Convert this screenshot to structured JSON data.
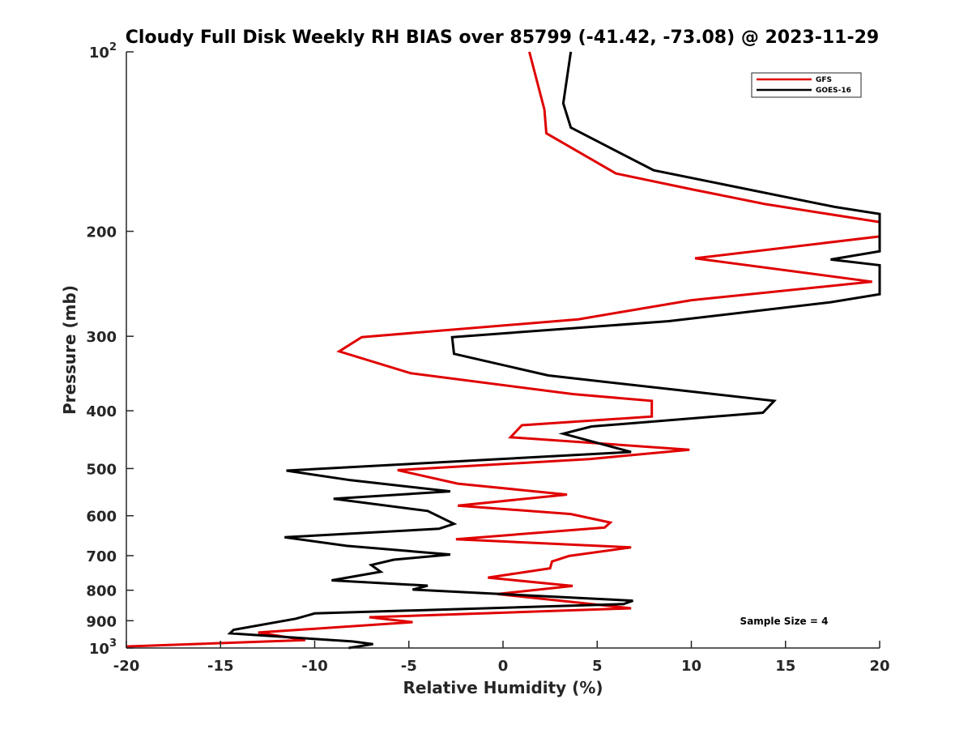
{
  "chart_data": {
    "type": "line",
    "title": "Cloudy Full Disk Weekly RH BIAS over 85799 (-41.42, -73.08) @ 2023-11-29",
    "xlabel": "Relative Humidity (%)",
    "ylabel": "Pressure (mb)",
    "xlim": [
      -20,
      20
    ],
    "ylim": [
      100,
      1000
    ],
    "y_scale": "log",
    "y_reversed": true,
    "x_ticks": [
      "-20",
      "-15",
      "-10",
      "-5",
      "0",
      "5",
      "10",
      "15",
      "20"
    ],
    "y_tick_values": [
      100,
      200,
      300,
      400,
      500,
      600,
      700,
      800,
      900,
      1000
    ],
    "y_tick_labels": [
      {
        "base": "10",
        "exp": "2"
      },
      {
        "base": "200",
        "exp": ""
      },
      {
        "base": "300",
        "exp": ""
      },
      {
        "base": "400",
        "exp": ""
      },
      {
        "base": "500",
        "exp": ""
      },
      {
        "base": "600",
        "exp": ""
      },
      {
        "base": "700",
        "exp": ""
      },
      {
        "base": "800",
        "exp": ""
      },
      {
        "base": "900",
        "exp": ""
      },
      {
        "base": "10",
        "exp": "3"
      }
    ],
    "legend_position": "top-right",
    "annotation": "Sample Size = 4",
    "grid": false,
    "series": [
      {
        "name": "GFS",
        "color": "#e00000",
        "points": [
          [
            1.4,
            100
          ],
          [
            2.2,
            125
          ],
          [
            2.3,
            137
          ],
          [
            6.0,
            160
          ],
          [
            10.0,
            170
          ],
          [
            13.9,
            180
          ],
          [
            20.0,
            193
          ],
          [
            20.0,
            204
          ],
          [
            10.2,
            222
          ],
          [
            19.6,
            243
          ],
          [
            10.0,
            261
          ],
          [
            4.0,
            281
          ],
          [
            -7.5,
            301
          ],
          [
            -8.7,
            318
          ],
          [
            -4.9,
            346
          ],
          [
            3.7,
            375
          ],
          [
            7.9,
            385
          ],
          [
            7.9,
            409
          ],
          [
            1.0,
            423
          ],
          [
            0.4,
            443
          ],
          [
            9.9,
            465
          ],
          [
            4.6,
            482
          ],
          [
            -5.6,
            503
          ],
          [
            -2.4,
            530
          ],
          [
            3.4,
            553
          ],
          [
            -2.4,
            577
          ],
          [
            3.6,
            596
          ],
          [
            5.7,
            616
          ],
          [
            5.4,
            628
          ],
          [
            -2.5,
            657
          ],
          [
            6.8,
            678
          ],
          [
            3.5,
            701
          ],
          [
            2.6,
            716
          ],
          [
            2.5,
            735
          ],
          [
            -0.8,
            762
          ],
          [
            3.7,
            787
          ],
          [
            -0.3,
            812
          ],
          [
            3.5,
            836
          ],
          [
            6.8,
            858
          ],
          [
            -7.1,
            888
          ],
          [
            -4.8,
            905
          ],
          [
            -13.0,
            942
          ],
          [
            -10.5,
            970
          ],
          [
            -20.0,
            994
          ]
        ]
      },
      {
        "name": "GOES-16",
        "color": "#000000",
        "points": [
          [
            3.6,
            100
          ],
          [
            3.2,
            122
          ],
          [
            3.6,
            134
          ],
          [
            8.0,
            158
          ],
          [
            17.6,
            182
          ],
          [
            20.0,
            187
          ],
          [
            20.0,
            216
          ],
          [
            17.4,
            223
          ],
          [
            20.0,
            228
          ],
          [
            20.0,
            255
          ],
          [
            17.4,
            263
          ],
          [
            8.8,
            283
          ],
          [
            -2.7,
            301
          ],
          [
            -2.6,
            321
          ],
          [
            2.4,
            349
          ],
          [
            10.2,
            372
          ],
          [
            14.4,
            385
          ],
          [
            13.8,
            403
          ],
          [
            4.7,
            425
          ],
          [
            3.2,
            437
          ],
          [
            6.8,
            469
          ],
          [
            -11.5,
            504
          ],
          [
            -8.1,
            523
          ],
          [
            -2.8,
            546
          ],
          [
            -9.0,
            562
          ],
          [
            -4.0,
            589
          ],
          [
            -2.6,
            619
          ],
          [
            -3.4,
            631
          ],
          [
            -11.6,
            652
          ],
          [
            -8.3,
            674
          ],
          [
            -2.8,
            697
          ],
          [
            -5.8,
            711
          ],
          [
            -7.0,
            726
          ],
          [
            -6.5,
            745
          ],
          [
            -9.1,
            770
          ],
          [
            -4.0,
            786
          ],
          [
            -4.8,
            798
          ],
          [
            6.9,
            833
          ],
          [
            6.4,
            844
          ],
          [
            -10.0,
            875
          ],
          [
            -11.0,
            893
          ],
          [
            -14.3,
            932
          ],
          [
            -14.5,
            945
          ],
          [
            -8.0,
            975
          ],
          [
            -6.9,
            985
          ],
          [
            -8.2,
            1000
          ]
        ]
      }
    ]
  }
}
